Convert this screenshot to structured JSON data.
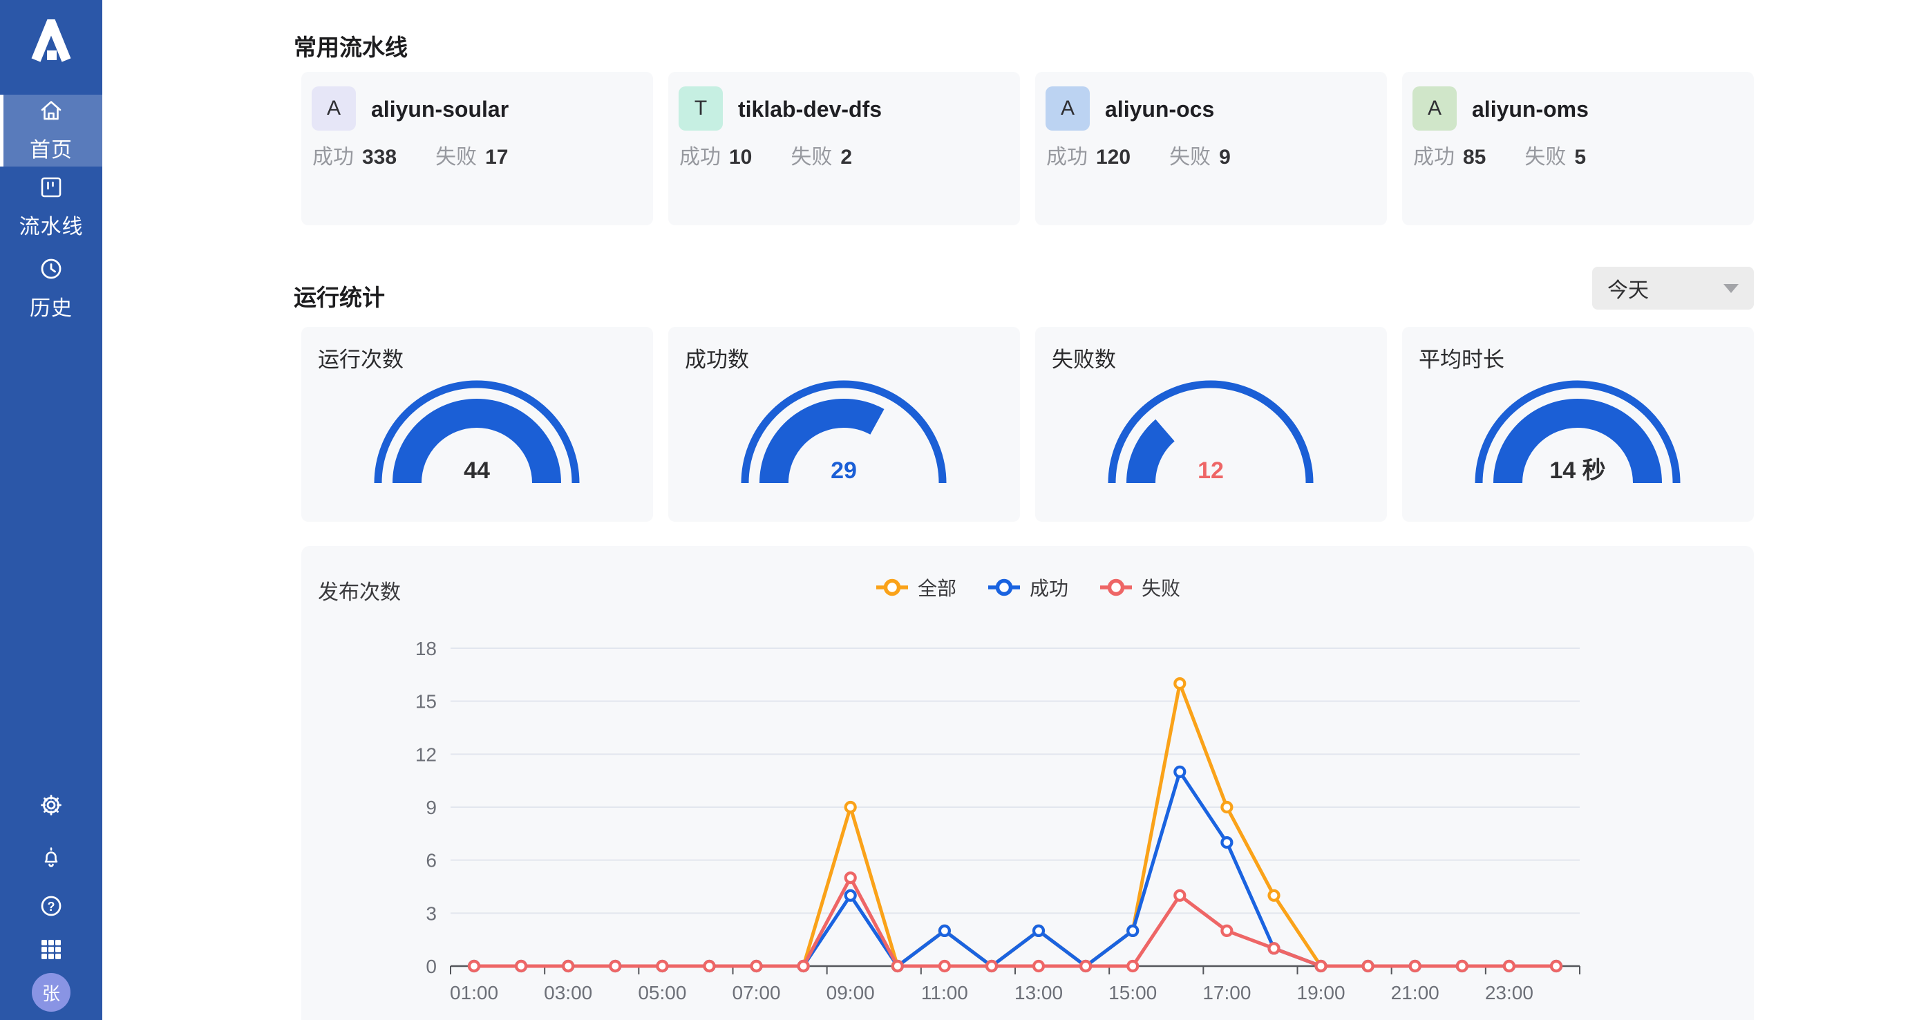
{
  "sidebar": {
    "logo": "A",
    "nav": [
      {
        "label": "首页",
        "icon": "home-icon",
        "active": true
      },
      {
        "label": "流水线",
        "icon": "pipeline-icon",
        "active": false
      },
      {
        "label": "历史",
        "icon": "history-clock-icon",
        "active": false
      }
    ],
    "bottom_icons": [
      "settings-gear-icon",
      "notifications-bell-icon",
      "help-icon",
      "apps-grid-icon"
    ],
    "avatar": "张",
    "colors": {
      "bg": "#2b57a8",
      "active_bg": "rgba(255,255,255,0.22)",
      "avatar_bg": "#8994e4"
    }
  },
  "pipelines": {
    "title": "常用流水线",
    "stat_labels": {
      "success": "成功",
      "fail": "失败"
    },
    "cards": [
      {
        "initial": "A",
        "name": "aliyun-soular",
        "success": "338",
        "fail": "17",
        "avatar_bg": "#e6e6f7"
      },
      {
        "initial": "T",
        "name": "tiklab-dev-dfs",
        "success": "10",
        "fail": "2",
        "avatar_bg": "#c6efe2"
      },
      {
        "initial": "A",
        "name": "aliyun-ocs",
        "success": "120",
        "fail": "9",
        "avatar_bg": "#bcd3f2"
      },
      {
        "initial": "A",
        "name": "aliyun-oms",
        "success": "85",
        "fail": "5",
        "avatar_bg": "#d0e6c9"
      }
    ]
  },
  "stats": {
    "title": "运行统计",
    "filter": {
      "value": "今天"
    },
    "gauge_color": "#1b5fd6",
    "gauges": [
      {
        "label": "运行次数",
        "value": "44",
        "fraction": 1,
        "value_color": "#2f2f31"
      },
      {
        "label": "成功数",
        "value": "29",
        "fraction": 0.659,
        "value_color": "#1b5fd6"
      },
      {
        "label": "失败数",
        "value": "12",
        "fraction": 0.273,
        "value_color": "#ee6666"
      },
      {
        "label": "平均时长",
        "value": "14 秒",
        "fraction": 1,
        "value_color": "#2f2f31"
      }
    ]
  },
  "chart_data": {
    "type": "line",
    "title": "发布次数",
    "legend_position": "top-center",
    "grid": "horizontal",
    "x": [
      "01:00",
      "02:00",
      "03:00",
      "04:00",
      "05:00",
      "06:00",
      "07:00",
      "08:00",
      "09:00",
      "10:00",
      "11:00",
      "12:00",
      "13:00",
      "14:00",
      "15:00",
      "16:00",
      "17:00",
      "18:00",
      "19:00",
      "20:00",
      "21:00",
      "22:00",
      "23:00",
      "00:00"
    ],
    "x_label_every": 2,
    "ylim": [
      0,
      18
    ],
    "yticks": [
      0,
      3,
      6,
      9,
      12,
      15,
      18
    ],
    "series": [
      {
        "name": "全部",
        "color": "#faa219",
        "values": [
          0,
          0,
          0,
          0,
          0,
          0,
          0,
          0,
          9,
          0,
          2,
          0,
          2,
          0,
          2,
          16,
          9,
          4,
          0,
          0,
          0,
          0,
          0,
          0
        ]
      },
      {
        "name": "成功",
        "color": "#1a63e0",
        "values": [
          0,
          0,
          0,
          0,
          0,
          0,
          0,
          0,
          4,
          0,
          2,
          0,
          2,
          0,
          2,
          11,
          7,
          1,
          0,
          0,
          0,
          0,
          0,
          0
        ]
      },
      {
        "name": "失败",
        "color": "#ee6666",
        "values": [
          0,
          0,
          0,
          0,
          0,
          0,
          0,
          0,
          5,
          0,
          0,
          0,
          0,
          0,
          0,
          4,
          2,
          1,
          0,
          0,
          0,
          0,
          0,
          0
        ]
      }
    ],
    "colors": {
      "grid_line": "#e2e6ee",
      "axis_line": "#54565b",
      "axis_text": "#6d7078"
    }
  }
}
